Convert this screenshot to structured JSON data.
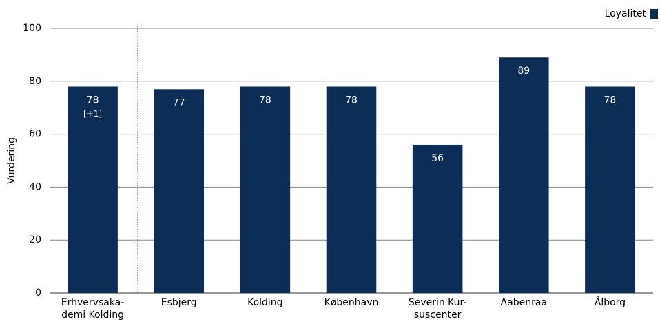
{
  "chart_data": {
    "type": "bar",
    "categories": [
      "Erhvervsaka-\ndemi Kolding",
      "Esbjerg",
      "Kolding",
      "København",
      "Severin Kur-\nsuscenter",
      "Aabenraa",
      "Ålborg"
    ],
    "series": [
      {
        "name": "Loyalitet",
        "color": "#0c2d56",
        "values": [
          78,
          77,
          78,
          78,
          56,
          89,
          78
        ]
      }
    ],
    "delta_labels": [
      "[+1]",
      null,
      null,
      null,
      null,
      null,
      null
    ],
    "ylabel": "Vurdering",
    "ylim": [
      0,
      100
    ],
    "yticks": [
      0,
      20,
      40,
      60,
      80,
      100
    ],
    "grid": true,
    "legend": "top-right"
  }
}
